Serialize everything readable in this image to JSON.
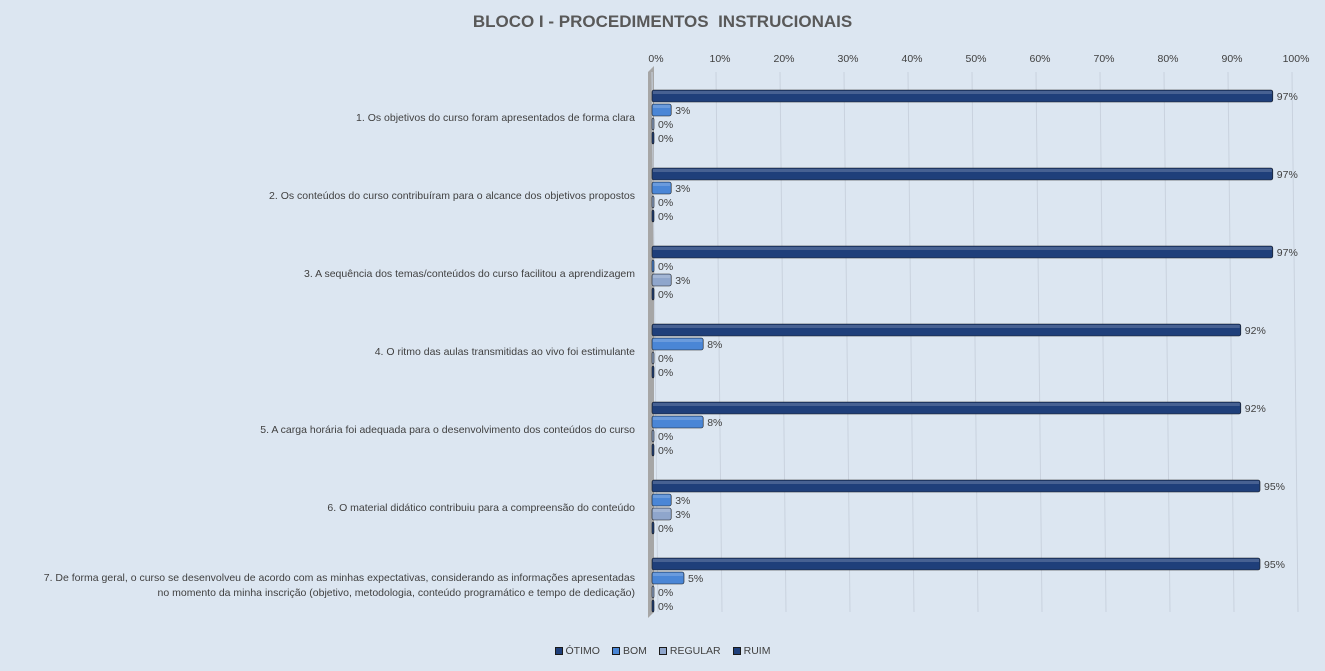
{
  "chart_data": {
    "type": "bar",
    "orientation": "horizontal",
    "title": "BLOCO I - PROCEDIMENTOS  INSTRUCIONAIS",
    "xlim": [
      0,
      100
    ],
    "x_ticks": [
      "0%",
      "10%",
      "20%",
      "30%",
      "40%",
      "50%",
      "60%",
      "70%",
      "80%",
      "90%",
      "100%"
    ],
    "grid": true,
    "legend_position": "bottom",
    "categories": [
      "1. Os objetivos do curso foram apresentados de forma clara",
      "2. Os conteúdos do curso contribuíram para o alcance dos objetivos propostos",
      "3. A sequência dos temas/conteúdos do curso facilitou a aprendizagem",
      "4. O ritmo das aulas transmitidas ao vivo foi estimulante",
      "5. A carga horária foi adequada para o desenvolvimento dos conteúdos do curso",
      "6. O material didático contribuiu para a compreensão do conteúdo",
      "7. De forma geral, o curso se desenvolveu de acordo com as minhas expectativas, considerando as informações apresentadas\nno momento da minha inscrição (objetivo, metodologia, conteúdo programático e tempo de dedicação)"
    ],
    "series": [
      {
        "name": "ÓTIMO",
        "color": "#1f3f7a",
        "values": [
          97,
          97,
          97,
          92,
          92,
          95,
          95
        ],
        "labels": [
          "97%",
          "97%",
          "97%",
          "92%",
          "92%",
          "95%",
          "95%"
        ]
      },
      {
        "name": "BOM",
        "color": "#4a86d6",
        "values": [
          3,
          3,
          0,
          8,
          8,
          3,
          5
        ],
        "labels": [
          "3%",
          "3%",
          "0%",
          "8%",
          "8%",
          "3%",
          "5%"
        ]
      },
      {
        "name": "REGULAR",
        "color": "#8fa6cc",
        "values": [
          0,
          0,
          3,
          0,
          0,
          3,
          0
        ],
        "labels": [
          "0%",
          "0%",
          "3%",
          "0%",
          "0%",
          "3%",
          "0%"
        ]
      },
      {
        "name": "RUIM",
        "color": "#1f3f7a",
        "values": [
          0,
          0,
          0,
          0,
          0,
          0,
          0
        ],
        "labels": [
          "0%",
          "0%",
          "0%",
          "0%",
          "0%",
          "0%",
          "0%"
        ]
      }
    ]
  }
}
